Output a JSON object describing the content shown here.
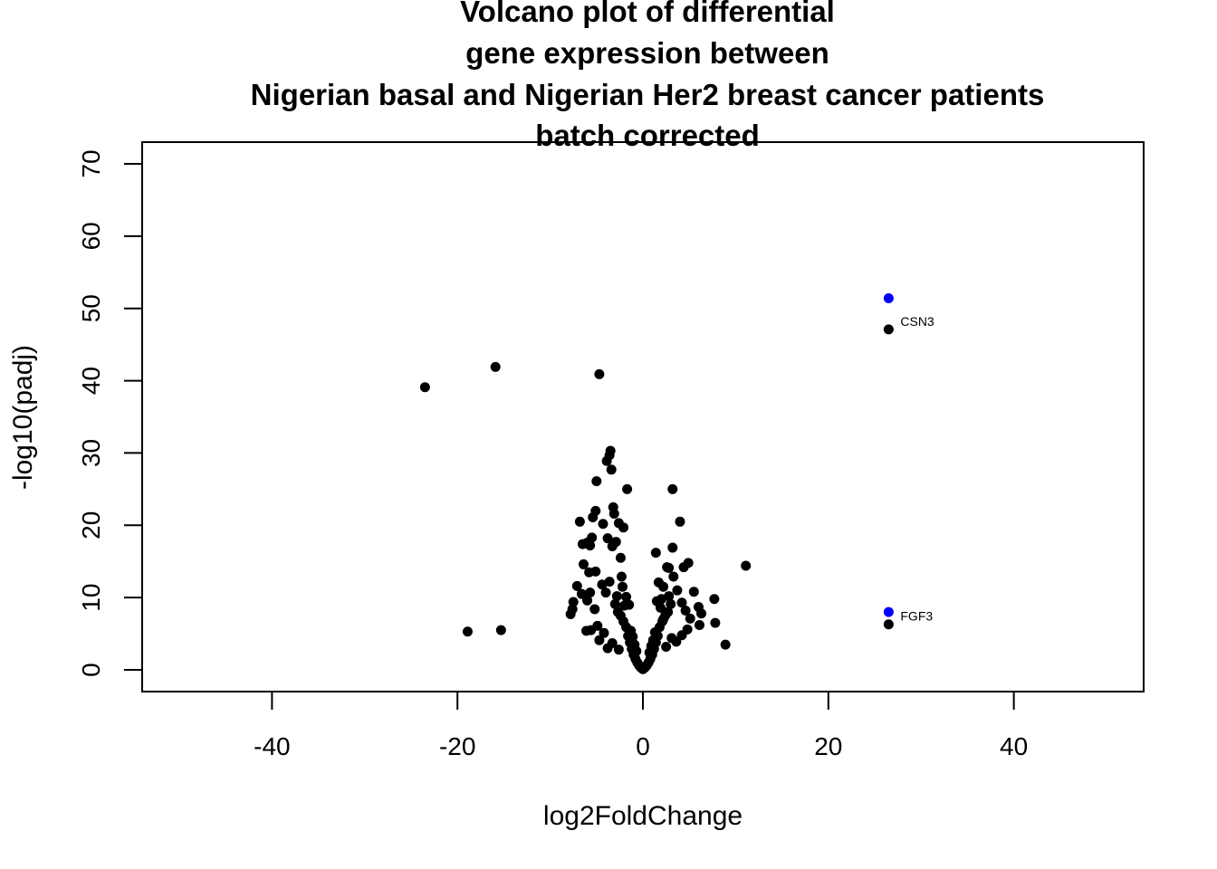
{
  "chart_data": {
    "type": "scatter",
    "title_lines": [
      "Volcano plot of differential",
      "gene expression between",
      "Nigerian basal and Nigerian Her2 breast cancer patients",
      "batch corrected"
    ],
    "xlabel": "log2FoldChange",
    "ylabel": "-log10(padj)",
    "xlim": [
      -54,
      54
    ],
    "ylim": [
      -3,
      73
    ],
    "x_ticks": [
      -40,
      -20,
      0,
      20,
      40
    ],
    "x_tick_labels": [
      "-40",
      "-20",
      "0",
      "20",
      "40"
    ],
    "y_ticks": [
      0,
      10,
      20,
      30,
      40,
      50,
      60,
      70
    ],
    "y_tick_labels": [
      "0",
      "10",
      "20",
      "30",
      "40",
      "50",
      "60",
      "70"
    ],
    "grid": false,
    "colors": {
      "default": "#000000",
      "highlight": "#0000ff"
    },
    "series": [
      {
        "color": "#000000",
        "points": [
          [
            -23.5,
            39.1
          ],
          [
            -15.9,
            41.9
          ],
          [
            -4.7,
            40.9
          ],
          [
            -18.9,
            5.3
          ],
          [
            -15.3,
            5.5
          ],
          [
            26.5,
            47.1
          ],
          [
            26.5,
            6.3
          ],
          [
            11.1,
            14.4
          ],
          [
            8.9,
            3.5
          ],
          [
            7.8,
            6.5
          ],
          [
            7.7,
            9.8
          ],
          [
            6.3,
            7.8
          ],
          [
            6.1,
            6.2
          ],
          [
            6.0,
            8.7
          ],
          [
            5.5,
            10.8
          ],
          [
            4.9,
            14.8
          ],
          [
            4.4,
            14.2
          ],
          [
            4.0,
            20.5
          ],
          [
            3.2,
            25.0
          ],
          [
            3.2,
            16.9
          ],
          [
            2.8,
            14.1
          ],
          [
            2.6,
            14.2
          ],
          [
            1.4,
            16.2
          ],
          [
            -1.7,
            25.0
          ],
          [
            -2.1,
            19.7
          ],
          [
            -2.4,
            15.5
          ],
          [
            -2.6,
            20.3
          ],
          [
            -3.1,
            21.6
          ],
          [
            -3.5,
            30.3
          ],
          [
            -3.6,
            29.7
          ],
          [
            -3.4,
            27.7
          ],
          [
            -3.9,
            28.9
          ],
          [
            -3.2,
            22.5
          ],
          [
            -2.9,
            17.7
          ],
          [
            -3.3,
            17.1
          ],
          [
            -3.8,
            18.2
          ],
          [
            -4.3,
            20.2
          ],
          [
            -5.0,
            26.1
          ],
          [
            -5.1,
            22.0
          ],
          [
            -5.4,
            21.1
          ],
          [
            -5.5,
            18.3
          ],
          [
            -6.0,
            17.6
          ],
          [
            -6.5,
            17.4
          ],
          [
            -6.8,
            20.5
          ],
          [
            -5.7,
            17.2
          ],
          [
            -5.1,
            13.6
          ],
          [
            -5.8,
            13.5
          ],
          [
            -6.4,
            14.6
          ],
          [
            -7.1,
            11.6
          ],
          [
            -6.6,
            10.5
          ],
          [
            -7.5,
            9.4
          ],
          [
            -7.8,
            7.7
          ],
          [
            -7.6,
            8.4
          ],
          [
            -6.0,
            9.6
          ],
          [
            -5.7,
            10.7
          ],
          [
            -5.2,
            8.4
          ],
          [
            -4.9,
            6.1
          ],
          [
            -5.6,
            5.5
          ],
          [
            -6.1,
            5.4
          ],
          [
            -4.7,
            4.1
          ],
          [
            -4.2,
            5.1
          ],
          [
            -3.8,
            3.0
          ],
          [
            -3.3,
            3.7
          ],
          [
            -2.6,
            2.8
          ],
          [
            -2.3,
            12.9
          ],
          [
            -2.2,
            11.5
          ],
          [
            -2.8,
            10.2
          ],
          [
            -3.0,
            9.1
          ],
          [
            -2.7,
            8.0
          ],
          [
            -2.4,
            7.5
          ],
          [
            -2.1,
            6.7
          ],
          [
            -1.8,
            5.9
          ],
          [
            -1.6,
            4.7
          ],
          [
            -1.4,
            3.8
          ],
          [
            -1.2,
            2.9
          ],
          [
            -1.0,
            2.1
          ],
          [
            -0.8,
            1.5
          ],
          [
            -0.6,
            1.0
          ],
          [
            -0.4,
            0.6
          ],
          [
            -0.2,
            0.3
          ],
          [
            0.0,
            0.1
          ],
          [
            0.2,
            0.3
          ],
          [
            0.4,
            0.6
          ],
          [
            0.6,
            1.0
          ],
          [
            0.8,
            1.5
          ],
          [
            1.0,
            2.1
          ],
          [
            1.2,
            2.9
          ],
          [
            1.4,
            3.8
          ],
          [
            1.6,
            4.7
          ],
          [
            1.8,
            5.9
          ],
          [
            2.1,
            6.7
          ],
          [
            2.4,
            7.5
          ],
          [
            2.7,
            8.0
          ],
          [
            3.0,
            9.1
          ],
          [
            2.8,
            10.2
          ],
          [
            2.2,
            11.5
          ],
          [
            1.7,
            12.1
          ],
          [
            3.3,
            12.9
          ],
          [
            3.7,
            11.0
          ],
          [
            4.2,
            9.3
          ],
          [
            4.6,
            8.2
          ],
          [
            5.1,
            7.1
          ],
          [
            4.8,
            5.6
          ],
          [
            4.2,
            4.8
          ],
          [
            3.6,
            3.9
          ],
          [
            3.1,
            4.4
          ],
          [
            2.5,
            3.2
          ],
          [
            -4.4,
            11.8
          ],
          [
            -4.0,
            10.7
          ],
          [
            -3.6,
            12.2
          ],
          [
            -1.8,
            10.1
          ],
          [
            -1.5,
            9.0
          ],
          [
            1.5,
            9.5
          ],
          [
            1.9,
            8.6
          ],
          [
            2.2,
            7.0
          ],
          [
            -0.9,
            3.5
          ],
          [
            -0.7,
            2.6
          ],
          [
            0.7,
            2.4
          ],
          [
            0.9,
            3.3
          ],
          [
            1.1,
            4.1
          ],
          [
            -1.1,
            4.6
          ],
          [
            -1.3,
            5.4
          ],
          [
            1.3,
            5.2
          ],
          [
            -2.0,
            8.9
          ],
          [
            2.0,
            9.8
          ]
        ]
      },
      {
        "color": "#0000ff",
        "points": [
          [
            26.5,
            51.4
          ],
          [
            26.5,
            8.0
          ]
        ]
      }
    ],
    "annotations": [
      {
        "text": "CSN3",
        "x": 26.5,
        "y": 47.1
      },
      {
        "text": "FGF3",
        "x": 26.5,
        "y": 6.3
      }
    ]
  }
}
